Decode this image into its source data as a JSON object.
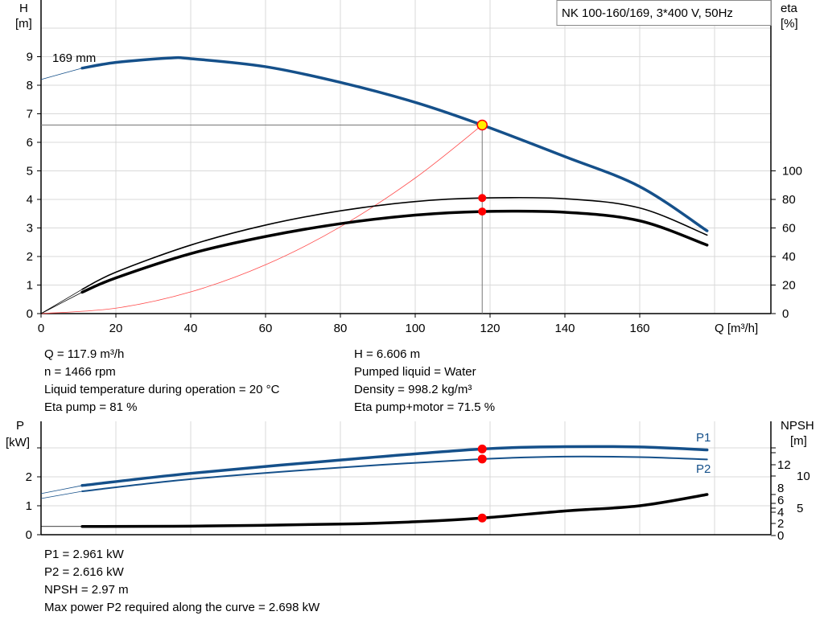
{
  "legend_box": "NK 100-160/169, 3*400 V, 50Hz",
  "curve_label": "169 mm",
  "info_top": {
    "left": [
      "Q = 117.9 m³/h",
      "n = 1466 rpm",
      "Liquid temperature during operation = 20 °C",
      "Eta pump = 81 %"
    ],
    "right": [
      "H = 6.606 m",
      "Pumped liquid = Water",
      "Density = 998.2 kg/m³",
      "Eta pump+motor = 71.5 %"
    ]
  },
  "info_bottom": [
    "P1 = 2.961 kW",
    "P2 = 2.616 kW",
    "NPSH = 2.97 m",
    "Max power P2 required along the curve = 2.698 kW"
  ],
  "colors": {
    "head": "#15508a",
    "power": "#15508a",
    "eta": "#000000",
    "npsh": "#000000",
    "system": "#ff4a4a",
    "operating_point": "#ff0000",
    "op_fill": "#ffee00"
  },
  "chart_data": [
    {
      "type": "line",
      "xlabel": "Q [m³/h]",
      "ylabel_left": [
        "H",
        "[m]"
      ],
      "ylabel_right": [
        "eta",
        "[%]"
      ],
      "x_ticks": [
        "0",
        "20",
        "40",
        "60",
        "80",
        "100",
        "120",
        "140",
        "160"
      ],
      "y_left_ticks": [
        "0",
        "1",
        "2",
        "3",
        "4",
        "5",
        "6",
        "7",
        "8",
        "9"
      ],
      "y_right_ticks": [
        "0",
        "20",
        "40",
        "60",
        "80",
        "100"
      ],
      "xlim": [
        0,
        195
      ],
      "ylim_left": [
        0,
        11
      ],
      "ylim_right": [
        0,
        220
      ],
      "grid": true,
      "series": [
        {
          "name": "169 mm",
          "axis": "left",
          "x": [
            0,
            11,
            20,
            34,
            40,
            60,
            80,
            100,
            117.9,
            140,
            160,
            178
          ],
          "y": [
            8.2,
            8.6,
            8.8,
            8.95,
            8.93,
            8.65,
            8.1,
            7.4,
            6.606,
            5.5,
            4.45,
            2.9
          ]
        },
        {
          "axis": "right",
          "x": [
            0,
            11,
            20,
            40,
            60,
            80,
            100,
            117.9,
            140,
            160,
            178
          ],
          "y": [
            0,
            17,
            29,
            48,
            62,
            72,
            78.5,
            81,
            80.5,
            74,
            55
          ]
        },
        {
          "axis": "right",
          "x": [
            0,
            11,
            20,
            40,
            60,
            80,
            100,
            117.9,
            140,
            160,
            178
          ],
          "y": [
            0,
            15,
            25,
            42,
            54,
            63,
            69,
            71.5,
            71,
            65,
            48
          ]
        },
        {
          "axis": "left",
          "x": [
            0,
            20,
            40,
            60,
            80,
            100,
            117.9
          ],
          "y": [
            0,
            0.19,
            0.76,
            1.71,
            3.04,
            4.75,
            6.606
          ]
        }
      ],
      "operating_point": {
        "Q": 117.9,
        "H": 6.606,
        "eta_pump": 81,
        "eta_pump_motor": 71.5
      }
    },
    {
      "type": "line",
      "ylabel_left": [
        "P",
        "[kW]"
      ],
      "ylabel_right": [
        "NPSH",
        "[m]"
      ],
      "y_left_ticks": [
        "0",
        "1",
        "2"
      ],
      "y_right_ticks": [
        "0",
        "2",
        "4",
        "5",
        "6",
        "8",
        "10",
        "12"
      ],
      "xlim": [
        0,
        195
      ],
      "ylim_left": [
        0,
        3.5
      ],
      "grid": true,
      "series": [
        {
          "name": "P1",
          "axis": "left",
          "x": [
            0,
            11,
            40,
            80,
            117.9,
            140,
            160,
            178
          ],
          "y": [
            1.42,
            1.7,
            2.12,
            2.58,
            2.961,
            3.04,
            3.03,
            2.93
          ]
        },
        {
          "name": "P2",
          "axis": "left",
          "x": [
            0,
            11,
            40,
            80,
            117.9,
            140,
            160,
            178
          ],
          "y": [
            1.25,
            1.5,
            1.92,
            2.32,
            2.616,
            2.698,
            2.68,
            2.6
          ]
        },
        {
          "name": "NPSH",
          "axis": "right",
          "x": [
            0,
            11,
            40,
            80,
            100,
            117.9,
            140,
            160,
            178
          ],
          "y": [
            1.5,
            1.5,
            1.55,
            1.9,
            2.3,
            2.97,
            4.3,
            5.5,
            8
          ]
        }
      ],
      "operating_point": {
        "P1": 2.961,
        "P2": 2.616,
        "NPSH": 2.97
      }
    }
  ]
}
